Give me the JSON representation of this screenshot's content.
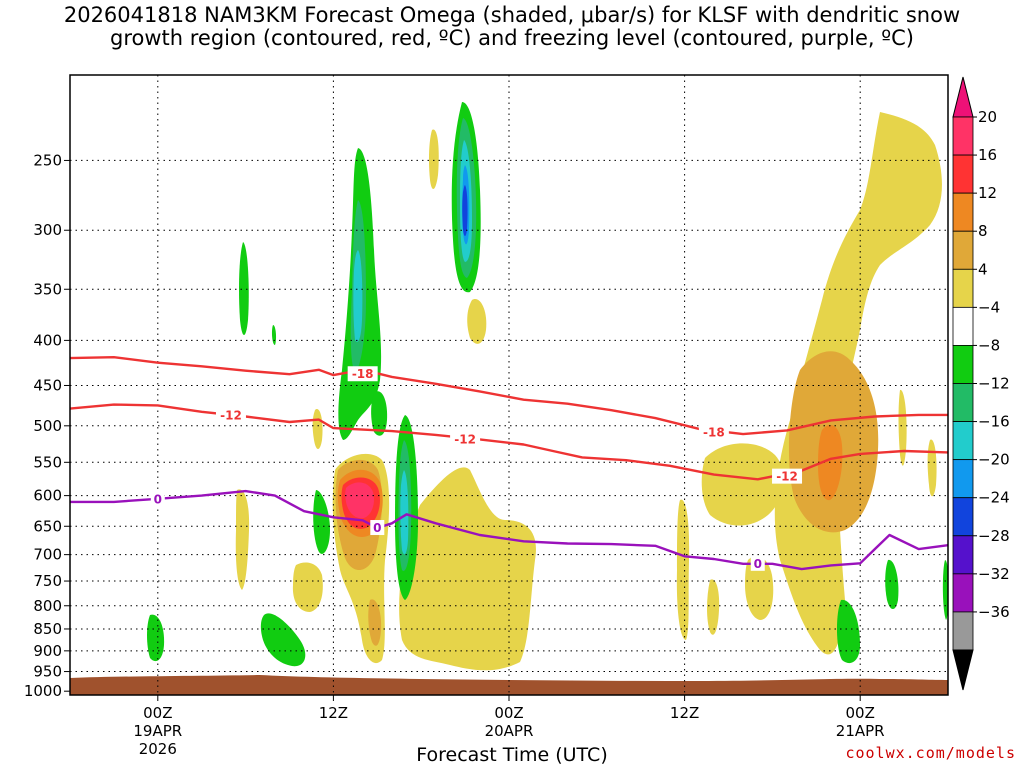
{
  "title": {
    "line1": "2026041818 NAM3KM Forecast Omega (shaded, μbar/s) for KLSF with dendritic snow",
    "line2": "growth region (contoured, red, ºC) and freezing level (contoured, purple, ºC)"
  },
  "credit": "coolwx.com/models",
  "chart_data": {
    "type": "heatmap",
    "xlabel": "Forecast Time (UTC)",
    "ylabel": "",
    "x_ticks": [
      {
        "hour": 6,
        "line1": "00Z",
        "line2": "19APR",
        "line3": "2026"
      },
      {
        "hour": 18,
        "line1": "12Z",
        "line2": "",
        "line3": ""
      },
      {
        "hour": 30,
        "line1": "00Z",
        "line2": "20APR",
        "line3": ""
      },
      {
        "hour": 42,
        "line1": "12Z",
        "line2": "",
        "line3": ""
      },
      {
        "hour": 54,
        "line1": "00Z",
        "line2": "21APR",
        "line3": ""
      }
    ],
    "xlim": [
      0,
      60
    ],
    "y_ticks": [
      250,
      300,
      350,
      400,
      450,
      500,
      550,
      600,
      650,
      700,
      750,
      800,
      850,
      900,
      950,
      1000
    ],
    "ylim": [
      1010,
      200
    ],
    "colorbar": {
      "labels": [
        "20",
        "16",
        "12",
        "8",
        "4",
        "−4",
        "−8",
        "−12",
        "−16",
        "−20",
        "−24",
        "−28",
        "−32",
        "−36"
      ],
      "colors": [
        "#ff3366",
        "#ff3333",
        "#ee8822",
        "#e0a838",
        "#e6d44a",
        "#ffffff",
        "#11cc11",
        "#22bb66",
        "#22cccc",
        "#1199ee",
        "#1144dd",
        "#5511cc",
        "#9911bb",
        "#999999"
      ],
      "top_arrow": "#ee1177",
      "bottom_arrow": "#000000"
    },
    "contours": [
      {
        "name": "dgz-minus-18",
        "label": "-18",
        "color": "#ee3333",
        "points": [
          [
            0,
            419
          ],
          [
            3,
            418
          ],
          [
            6,
            424
          ],
          [
            9,
            428
          ],
          [
            12,
            433
          ],
          [
            15,
            437
          ],
          [
            17,
            432
          ],
          [
            18,
            438
          ],
          [
            20,
            432
          ],
          [
            22,
            440
          ],
          [
            25,
            448
          ],
          [
            28,
            457
          ],
          [
            31,
            467
          ],
          [
            34,
            472
          ],
          [
            37,
            480
          ],
          [
            40,
            490
          ],
          [
            43,
            504
          ],
          [
            46,
            511
          ],
          [
            49,
            506
          ],
          [
            52,
            493
          ],
          [
            55,
            488
          ],
          [
            58,
            486
          ],
          [
            60,
            486
          ]
        ],
        "labels_at": [
          [
            20,
            437
          ],
          [
            44,
            509
          ]
        ]
      },
      {
        "name": "dgz-minus-12",
        "label": "-12",
        "color": "#ee3333",
        "points": [
          [
            0,
            478
          ],
          [
            3,
            473
          ],
          [
            6,
            474
          ],
          [
            9,
            482
          ],
          [
            12,
            488
          ],
          [
            15,
            495
          ],
          [
            17,
            492
          ],
          [
            18,
            503
          ],
          [
            20,
            505
          ],
          [
            22,
            507
          ],
          [
            25,
            512
          ],
          [
            28,
            518
          ],
          [
            31,
            525
          ],
          [
            33,
            534
          ],
          [
            35,
            543
          ],
          [
            38,
            547
          ],
          [
            41,
            555
          ],
          [
            44,
            568
          ],
          [
            47,
            575
          ],
          [
            50,
            562
          ],
          [
            52,
            545
          ],
          [
            54,
            538
          ],
          [
            57,
            534
          ],
          [
            60,
            536
          ]
        ],
        "labels_at": [
          [
            11,
            487
          ],
          [
            27,
            518
          ],
          [
            49,
            571
          ]
        ]
      },
      {
        "name": "freezing-level-0",
        "label": "0",
        "color": "#9911bb",
        "points": [
          [
            0,
            610
          ],
          [
            3,
            610
          ],
          [
            6,
            605
          ],
          [
            9,
            600
          ],
          [
            12,
            593
          ],
          [
            14,
            600
          ],
          [
            16,
            625
          ],
          [
            18,
            635
          ],
          [
            20,
            640
          ],
          [
            21,
            653
          ],
          [
            22,
            645
          ],
          [
            23,
            630
          ],
          [
            25,
            645
          ],
          [
            28,
            665
          ],
          [
            31,
            676
          ],
          [
            34,
            680
          ],
          [
            37,
            681
          ],
          [
            40,
            684
          ],
          [
            42,
            703
          ],
          [
            44,
            708
          ],
          [
            46,
            717
          ],
          [
            48,
            717
          ],
          [
            50,
            727
          ],
          [
            52,
            720
          ],
          [
            54,
            716
          ],
          [
            55,
            690
          ],
          [
            56,
            665
          ],
          [
            58,
            690
          ],
          [
            60,
            683
          ]
        ],
        "labels_at": [
          [
            6,
            606
          ],
          [
            21,
            653
          ],
          [
            47,
            717
          ]
        ]
      }
    ],
    "terrain": {
      "surface_hpa": 995,
      "bottom_hpa": 1010,
      "color": "#a0522d"
    },
    "omega_blobs": [
      {
        "name": "upper-ascent-core",
        "hour": 27,
        "hpa": 295,
        "w_hours": 1.1,
        "h_hpa": 95,
        "level": -24
      },
      {
        "name": "shallow-ascent-column",
        "hour": 22.5,
        "hpa": 640,
        "w_hours": 1.0,
        "h_hpa": 170,
        "level": -12
      },
      {
        "name": "mid-ascent-column",
        "hour": 18.8,
        "hpa": 360,
        "w_hours": 1.0,
        "h_hpa": 160,
        "level": -12
      },
      {
        "name": "descent-max",
        "hour": 19.5,
        "hpa": 620,
        "w_hours": 1.6,
        "h_hpa": 70,
        "level": 20
      },
      {
        "name": "late-descent-max",
        "hour": 51.5,
        "hpa": 550,
        "w_hours": 2.6,
        "h_hpa": 140,
        "level": 12
      }
    ]
  }
}
